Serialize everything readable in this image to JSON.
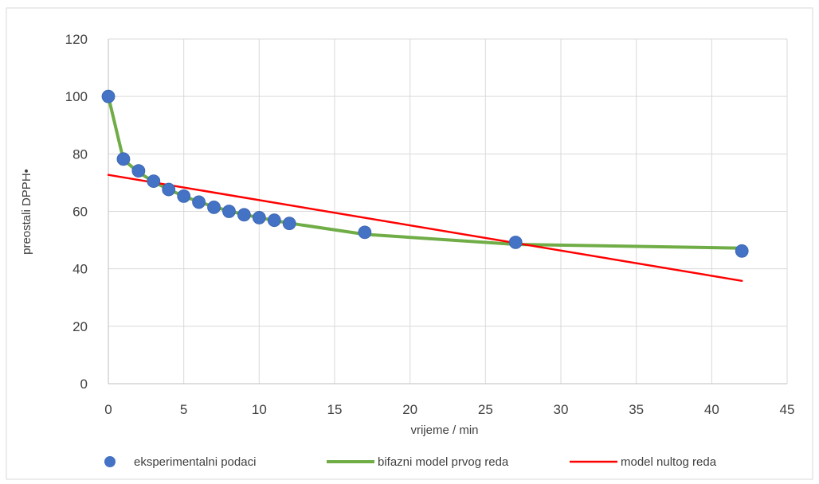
{
  "chart_data": {
    "type": "scatter",
    "title": "",
    "xlabel": "vrijeme / min",
    "ylabel": "preostali DPPH•",
    "xlim": [
      0,
      45
    ],
    "ylim": [
      0,
      120
    ],
    "xticks": [
      0,
      5,
      10,
      15,
      20,
      25,
      30,
      35,
      40,
      45
    ],
    "yticks": [
      0,
      20,
      40,
      60,
      80,
      100,
      120
    ],
    "grid": true,
    "legend_position": "bottom",
    "series": [
      {
        "name": "eksperimentalni podaci",
        "kind": "markers",
        "color": "#4472C4",
        "x": [
          0,
          1,
          2,
          3,
          4,
          5,
          6,
          7,
          8,
          9,
          10,
          11,
          12,
          17,
          27,
          42
        ],
        "y": [
          100,
          78.2,
          74.1,
          70.5,
          67.6,
          65.3,
          63.2,
          61.4,
          60.0,
          58.8,
          57.8,
          56.9,
          55.8,
          52.7,
          49.2,
          46.2
        ]
      },
      {
        "name": "bifazni model prvog reda",
        "kind": "line",
        "color": "#70AD47",
        "x": [
          0,
          1,
          2,
          3,
          4,
          5,
          6,
          7,
          8,
          9,
          10,
          11,
          12,
          17,
          27,
          42
        ],
        "y": [
          100,
          78.0,
          73.6,
          70.3,
          67.6,
          65.3,
          63.3,
          61.6,
          60.1,
          58.9,
          57.8,
          56.8,
          55.9,
          52.0,
          48.5,
          47.2
        ]
      },
      {
        "name": "model nultog reda",
        "kind": "line",
        "color": "#FF0000",
        "x": [
          0,
          42
        ],
        "y": [
          72.7,
          35.8
        ]
      }
    ]
  }
}
